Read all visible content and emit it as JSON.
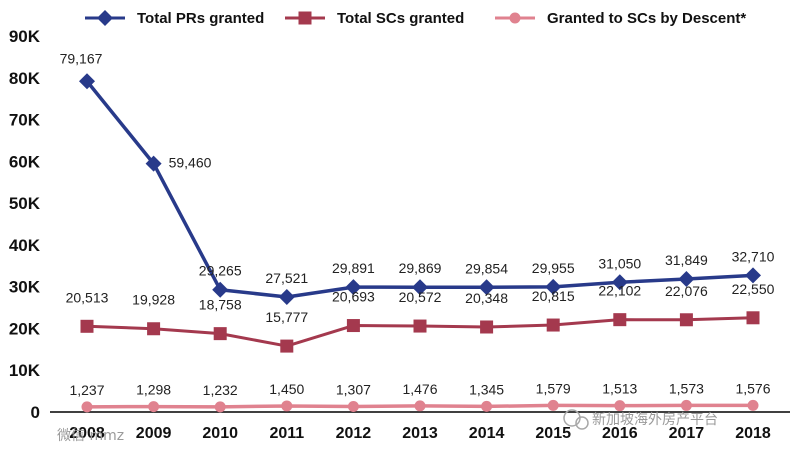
{
  "chart_data": {
    "type": "line",
    "title": "",
    "xlabel": "",
    "ylabel": "",
    "categories": [
      "2008",
      "2009",
      "2010",
      "2011",
      "2012",
      "2013",
      "2014",
      "2015",
      "2016",
      "2017",
      "2018"
    ],
    "ylim": [
      0,
      90000
    ],
    "y_ticks": [
      {
        "value": 0,
        "label": "0"
      },
      {
        "value": 10000,
        "label": "10K"
      },
      {
        "value": 20000,
        "label": "20K"
      },
      {
        "value": 30000,
        "label": "30K"
      },
      {
        "value": 40000,
        "label": "40K"
      },
      {
        "value": 50000,
        "label": "50K"
      },
      {
        "value": 60000,
        "label": "60K"
      },
      {
        "value": 70000,
        "label": "70K"
      },
      {
        "value": 80000,
        "label": "80K"
      },
      {
        "value": 90000,
        "label": "90K"
      }
    ],
    "grid": false,
    "legend_position": "top",
    "series": [
      {
        "name": "Total PRs granted",
        "color": "#283a8a",
        "marker": "diamond",
        "values": [
          79167,
          59460,
          29265,
          27521,
          29891,
          29869,
          29854,
          29955,
          31050,
          31849,
          32710
        ],
        "labels": [
          "79,167",
          "59,460",
          "29,265",
          "27,521",
          "29,891",
          "29,869",
          "29,854",
          "29,955",
          "31,050",
          "31,849",
          "32,710"
        ]
      },
      {
        "name": "Total SCs granted",
        "color": "#a4394e",
        "marker": "square",
        "values": [
          20513,
          19928,
          18758,
          15777,
          20693,
          20572,
          20348,
          20815,
          22102,
          22076,
          22550
        ],
        "labels": [
          "20,513",
          "19,928",
          "18,758",
          "15,777",
          "20,693",
          "20,572",
          "20,348",
          "20,815",
          "22,102",
          "22,076",
          "22,550"
        ]
      },
      {
        "name": "Granted to SCs by Descent*",
        "color": "#e0828f",
        "marker": "circle",
        "values": [
          1237,
          1298,
          1232,
          1450,
          1307,
          1476,
          1345,
          1579,
          1513,
          1573,
          1576
        ],
        "labels": [
          "1,237",
          "1,298",
          "1,232",
          "1,450",
          "1,307",
          "1,476",
          "1,345",
          "1,579",
          "1,513",
          "1,573",
          "1,576"
        ]
      }
    ]
  },
  "watermarks": {
    "left": "微信 mmz",
    "right": "新加坡海外房产平台"
  }
}
